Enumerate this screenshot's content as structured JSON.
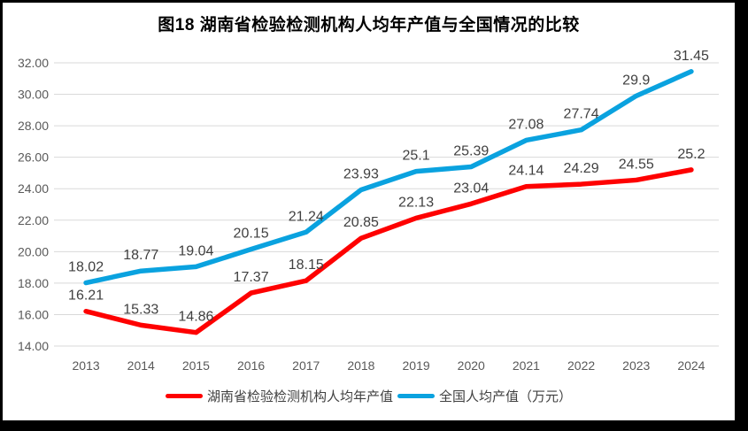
{
  "chart": {
    "title": "图18 湖南省检验检测机构人均年产值与全国情况的比较"
  },
  "chart_data": {
    "type": "line",
    "title": "图18 湖南省检验检测机构人均年产值与全国情况的比较",
    "categories": [
      "2013",
      "2014",
      "2015",
      "2016",
      "2017",
      "2018",
      "2019",
      "2020",
      "2021",
      "2022",
      "2023",
      "2024"
    ],
    "series": [
      {
        "name": "湖南省检验检测机构人均年产值",
        "color": "#FE0000",
        "values": [
          16.21,
          15.33,
          14.86,
          17.37,
          18.15,
          20.85,
          22.13,
          23.04,
          24.14,
          24.29,
          24.55,
          25.2
        ]
      },
      {
        "name": "全国人均产值（万元）",
        "color": "#0AA2DF",
        "values": [
          18.02,
          18.77,
          19.04,
          20.15,
          21.24,
          23.93,
          25.1,
          25.39,
          27.08,
          27.74,
          29.9,
          31.45
        ]
      }
    ],
    "xlabel": "",
    "ylabel": "",
    "ylim": [
      14,
      32
    ],
    "ytick_step": 2,
    "ytick_labels": [
      "14.00",
      "16.00",
      "18.00",
      "20.00",
      "22.00",
      "24.00",
      "26.00",
      "28.00",
      "30.00",
      "32.00"
    ],
    "grid": "horizontal",
    "data_labels": true,
    "legend_position": "bottom",
    "colors": {
      "gridline": "#D9D9D9",
      "axis_label": "#595959",
      "data_label": "#404040",
      "frame_border": "#000000"
    }
  }
}
